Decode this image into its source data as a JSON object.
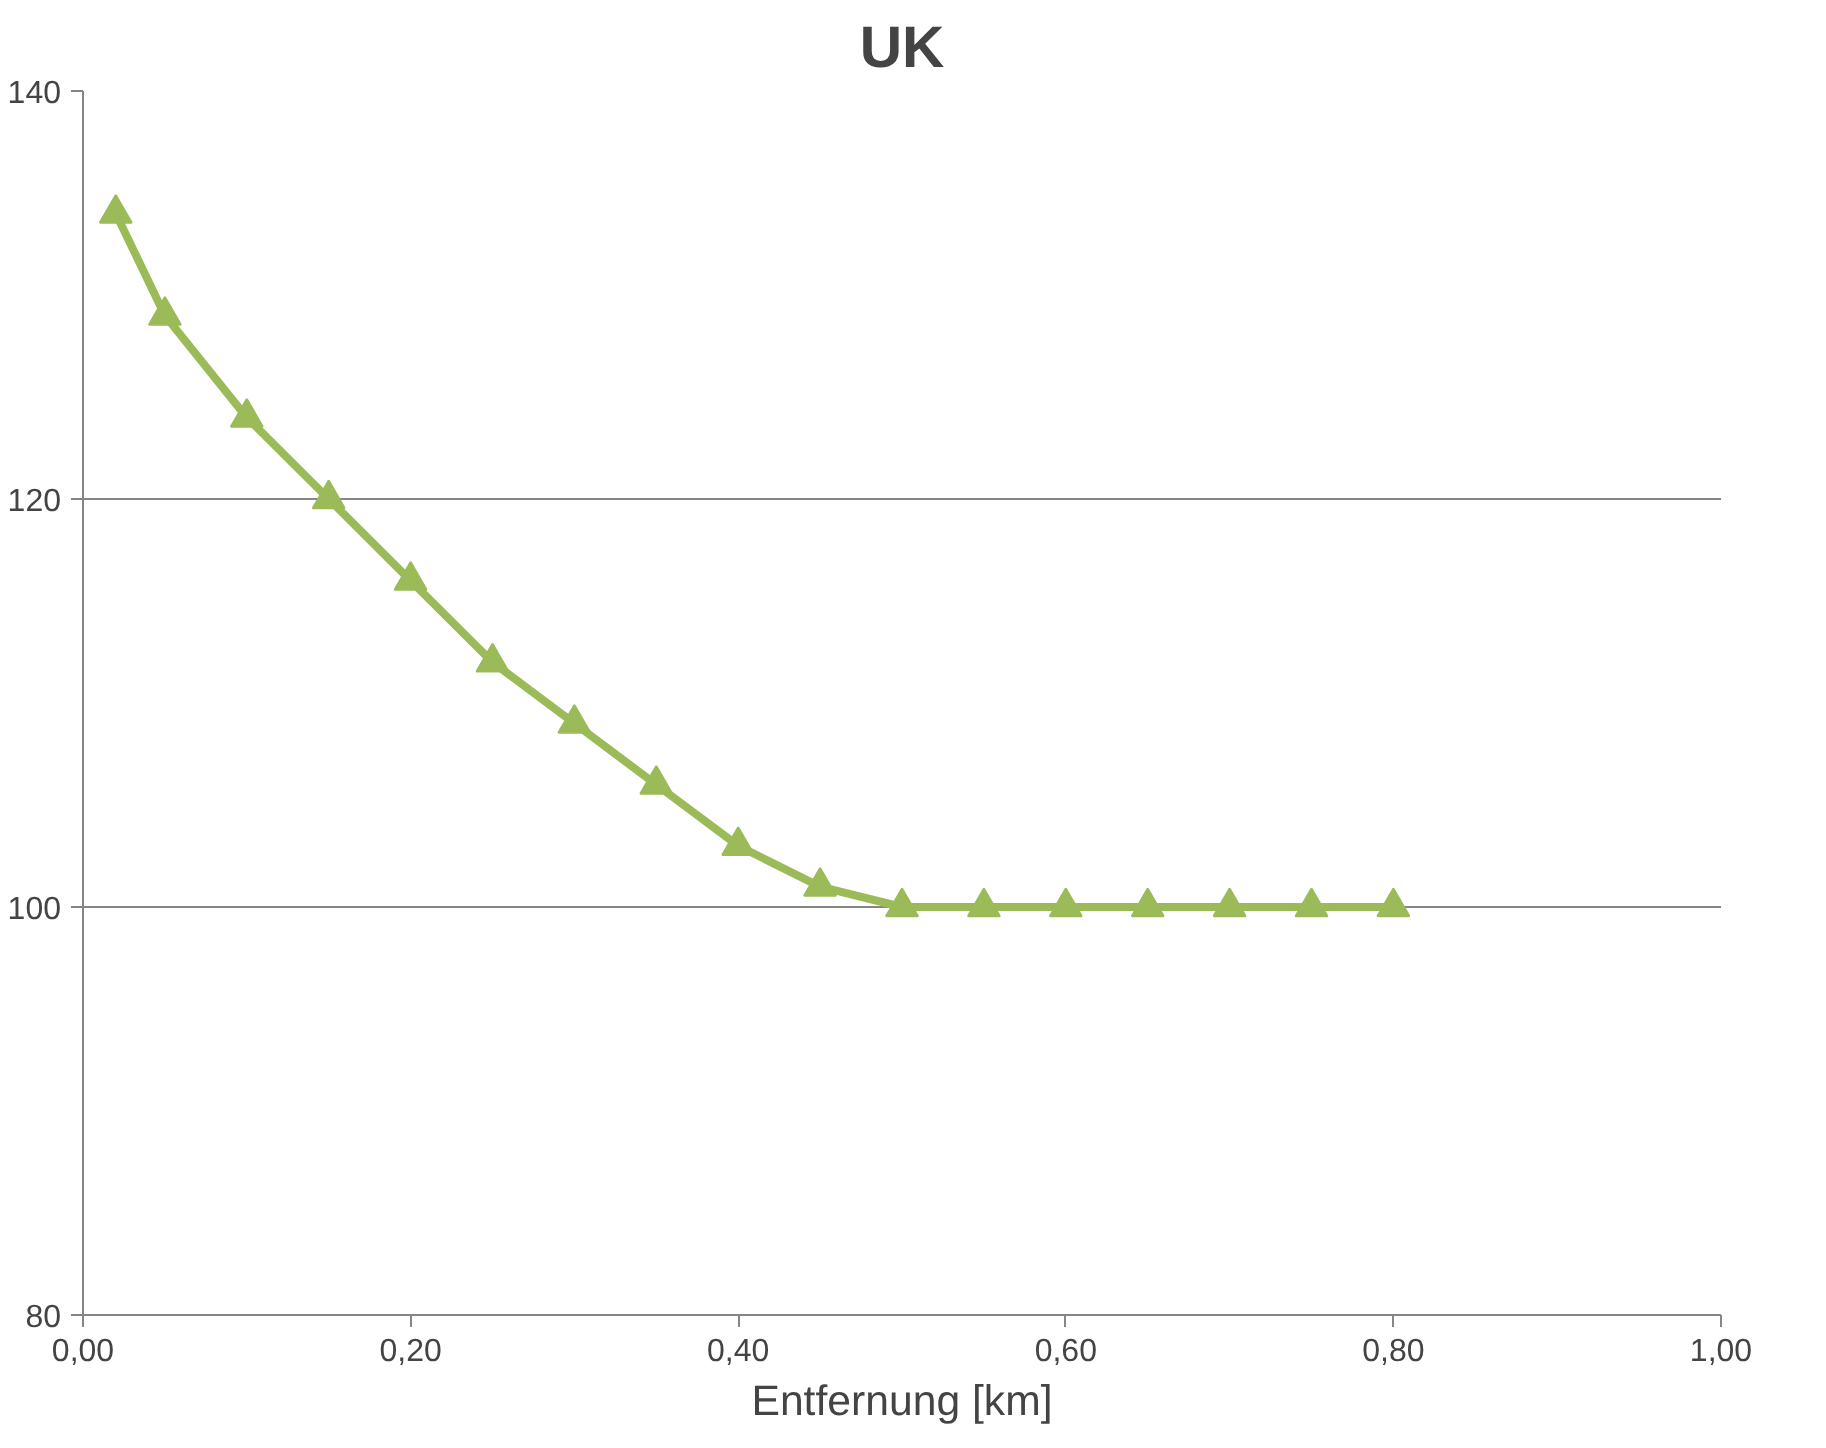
{
  "chart_data": {
    "type": "line",
    "title": "UK",
    "xlabel": "Entfernung [km]",
    "x": [
      0.02,
      0.05,
      0.1,
      0.15,
      0.2,
      0.25,
      0.3,
      0.35,
      0.4,
      0.45,
      0.5,
      0.55,
      0.6,
      0.65,
      0.7,
      0.75,
      0.8
    ],
    "series": [
      {
        "color": "#9bbb59",
        "values": [
          134,
          129,
          124,
          120,
          116,
          112,
          109,
          106,
          103,
          101,
          100,
          100,
          100,
          100,
          100,
          100,
          100
        ]
      }
    ],
    "xlim": [
      0,
      1
    ],
    "ylim": [
      80,
      140
    ],
    "xticks": [
      {
        "value": 0,
        "label": "0,00"
      },
      {
        "value": 0.2,
        "label": "0,20"
      },
      {
        "value": 0.4,
        "label": "0,40"
      },
      {
        "value": 0.6,
        "label": "0,60"
      },
      {
        "value": 0.8,
        "label": "0,80"
      },
      {
        "value": 1,
        "label": "1,00"
      }
    ],
    "yticks": [
      80,
      100,
      120,
      140
    ],
    "grid": "y",
    "marker": "triangle",
    "line_style": "solid"
  }
}
